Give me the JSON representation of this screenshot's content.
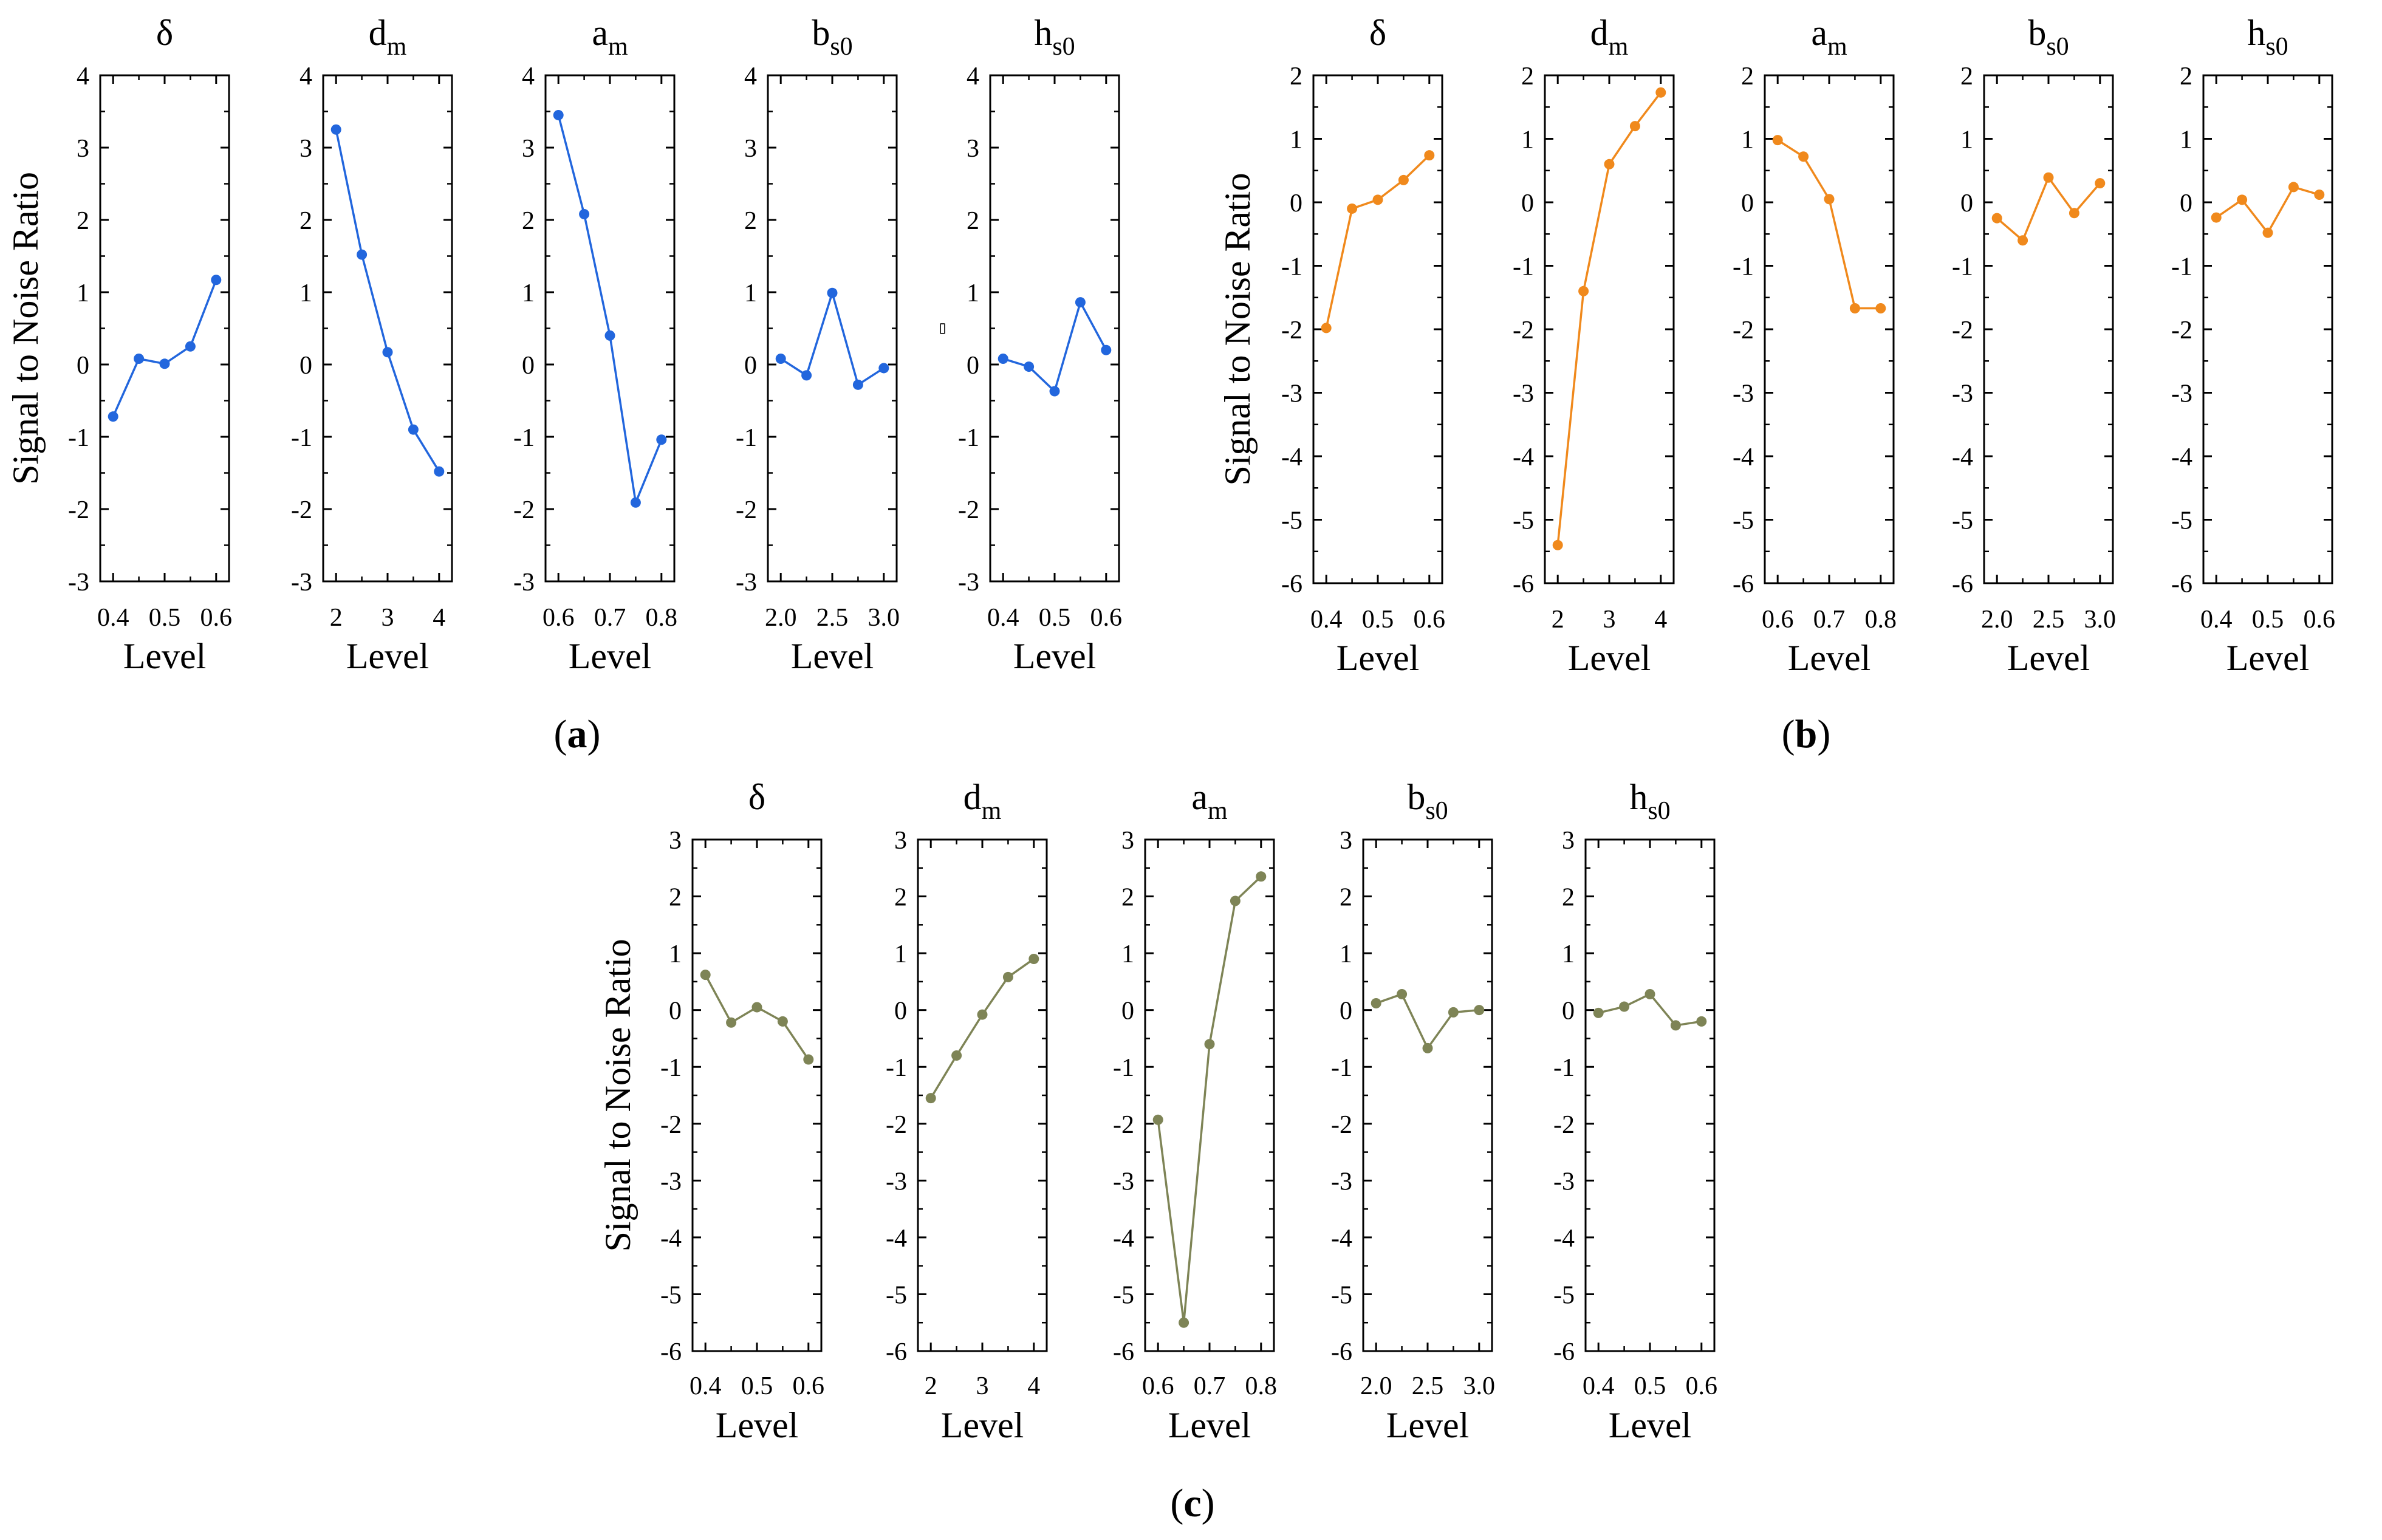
{
  "figure": {
    "y_axis_label": "Signal to Noise Ratio",
    "x_axis_label": "Level"
  },
  "chart_data": [
    {
      "id": "a",
      "label": "(a)",
      "type": "line",
      "color": "#2266dd",
      "ylabel": "Signal to Noise Ratio",
      "ylim": [
        -3,
        4
      ],
      "yticks": [
        -3,
        -2,
        -1,
        0,
        1,
        2,
        3,
        4
      ],
      "panels": [
        {
          "title": "δ",
          "sub": "",
          "xlabel": "Level",
          "xlim": [
            0.375,
            0.625
          ],
          "xticks": [
            0.4,
            0.5,
            0.6
          ],
          "xtick_labels": [
            "0.4",
            "0.5",
            "0.6"
          ],
          "x": [
            0.4,
            0.45,
            0.5,
            0.55,
            0.6
          ],
          "y": [
            -0.72,
            0.08,
            0.01,
            0.25,
            1.17
          ]
        },
        {
          "title": "d",
          "sub": "m",
          "xlabel": "Level",
          "xlim": [
            1.75,
            4.25
          ],
          "xticks": [
            2,
            3,
            4
          ],
          "xtick_labels": [
            "2",
            "3",
            "4"
          ],
          "x": [
            2.0,
            2.5,
            3.0,
            3.5,
            4.0
          ],
          "y": [
            3.25,
            1.52,
            0.17,
            -0.9,
            -1.48
          ]
        },
        {
          "title": "a",
          "sub": "m",
          "xlabel": "Level",
          "xlim": [
            0.575,
            0.825
          ],
          "xticks": [
            0.6,
            0.7,
            0.8
          ],
          "xtick_labels": [
            "0.6",
            "0.7",
            "0.8"
          ],
          "x": [
            0.6,
            0.65,
            0.7,
            0.75,
            0.8
          ],
          "y": [
            3.45,
            2.08,
            0.4,
            -1.91,
            -1.04
          ]
        },
        {
          "title": "b",
          "sub": "s0",
          "xlabel": "Level",
          "xlim": [
            1.875,
            3.125
          ],
          "xticks": [
            2.0,
            2.5,
            3.0
          ],
          "xtick_labels": [
            "2.0",
            "2.5",
            "3.0"
          ],
          "x": [
            2.0,
            2.25,
            2.5,
            2.75,
            3.0
          ],
          "y": [
            0.08,
            -0.15,
            0.99,
            -0.28,
            -0.05
          ]
        },
        {
          "title": "h",
          "sub": "s0",
          "xlabel": "Level",
          "xlim": [
            0.375,
            0.625
          ],
          "xticks": [
            0.4,
            0.5,
            0.6
          ],
          "xtick_labels": [
            "0.4",
            "0.5",
            "0.6"
          ],
          "x": [
            0.4,
            0.45,
            0.5,
            0.55,
            0.6
          ],
          "y": [
            0.08,
            -0.03,
            -0.37,
            0.86,
            0.2
          ]
        }
      ]
    },
    {
      "id": "b",
      "label": "(b)",
      "type": "line",
      "color": "#f0891c",
      "ylabel": "Signal to Noise Ratio",
      "ylim": [
        -6,
        2
      ],
      "yticks": [
        -6,
        -5,
        -4,
        -3,
        -2,
        -1,
        0,
        1,
        2
      ],
      "panels": [
        {
          "title": "δ",
          "sub": "",
          "xlabel": "Level",
          "xlim": [
            0.375,
            0.625
          ],
          "xticks": [
            0.4,
            0.5,
            0.6
          ],
          "xtick_labels": [
            "0.4",
            "0.5",
            "0.6"
          ],
          "x": [
            0.4,
            0.45,
            0.5,
            0.55,
            0.6
          ],
          "y": [
            -1.98,
            -0.1,
            0.04,
            0.35,
            0.74
          ]
        },
        {
          "title": "d",
          "sub": "m",
          "xlabel": "Level",
          "xlim": [
            1.75,
            4.25
          ],
          "xticks": [
            2,
            3,
            4
          ],
          "xtick_labels": [
            "2",
            "3",
            "4"
          ],
          "x": [
            2.0,
            2.5,
            3.0,
            3.5,
            4.0
          ],
          "y": [
            -5.4,
            -1.4,
            0.6,
            1.2,
            1.73
          ]
        },
        {
          "title": "a",
          "sub": "m",
          "xlabel": "Level",
          "xlim": [
            0.575,
            0.825
          ],
          "xticks": [
            0.6,
            0.7,
            0.8
          ],
          "xtick_labels": [
            "0.6",
            "0.7",
            "0.8"
          ],
          "x": [
            0.6,
            0.65,
            0.7,
            0.75,
            0.8
          ],
          "y": [
            0.98,
            0.72,
            0.05,
            -1.67,
            -1.67
          ]
        },
        {
          "title": "b",
          "sub": "s0",
          "xlabel": "Level",
          "xlim": [
            1.875,
            3.125
          ],
          "xticks": [
            2.0,
            2.5,
            3.0
          ],
          "xtick_labels": [
            "2.0",
            "2.5",
            "3.0"
          ],
          "x": [
            2.0,
            2.25,
            2.5,
            2.75,
            3.0
          ],
          "y": [
            -0.25,
            -0.6,
            0.39,
            -0.17,
            0.3
          ]
        },
        {
          "title": "h",
          "sub": "s0",
          "xlabel": "Level",
          "xlim": [
            0.375,
            0.625
          ],
          "xticks": [
            0.4,
            0.5,
            0.6
          ],
          "xtick_labels": [
            "0.4",
            "0.5",
            "0.6"
          ],
          "x": [
            0.4,
            0.45,
            0.5,
            0.55,
            0.6
          ],
          "y": [
            -0.24,
            0.04,
            -0.48,
            0.24,
            0.12
          ]
        }
      ]
    },
    {
      "id": "c",
      "label": "(c)",
      "type": "line",
      "color": "#7e8456",
      "ylabel": "Signal to Noise Ratio",
      "ylim": [
        -6,
        3
      ],
      "yticks": [
        -6,
        -5,
        -4,
        -3,
        -2,
        -1,
        0,
        1,
        2,
        3
      ],
      "panels": [
        {
          "title": "δ",
          "sub": "",
          "xlabel": "Level",
          "xlim": [
            0.375,
            0.625
          ],
          "xticks": [
            0.4,
            0.5,
            0.6
          ],
          "xtick_labels": [
            "0.4",
            "0.5",
            "0.6"
          ],
          "x": [
            0.4,
            0.45,
            0.5,
            0.55,
            0.6
          ],
          "y": [
            0.62,
            -0.22,
            0.05,
            -0.2,
            -0.87
          ]
        },
        {
          "title": "d",
          "sub": "m",
          "xlabel": "Level",
          "xlim": [
            1.75,
            4.25
          ],
          "xticks": [
            2,
            3,
            4
          ],
          "xtick_labels": [
            "2",
            "3",
            "4"
          ],
          "x": [
            2.0,
            2.5,
            3.0,
            3.5,
            4.0
          ],
          "y": [
            -1.55,
            -0.8,
            -0.08,
            0.58,
            0.9
          ]
        },
        {
          "title": "a",
          "sub": "m",
          "xlabel": "Level",
          "xlim": [
            0.575,
            0.825
          ],
          "xticks": [
            0.6,
            0.7,
            0.8
          ],
          "xtick_labels": [
            "0.6",
            "0.7",
            "0.8"
          ],
          "x": [
            0.6,
            0.65,
            0.7,
            0.75,
            0.8
          ],
          "y": [
            -1.93,
            -5.5,
            -0.6,
            1.92,
            2.35
          ]
        },
        {
          "title": "b",
          "sub": "s0",
          "xlabel": "Level",
          "xlim": [
            1.875,
            3.125
          ],
          "xticks": [
            2.0,
            2.5,
            3.0
          ],
          "xtick_labels": [
            "2.0",
            "2.5",
            "3.0"
          ],
          "x": [
            2.0,
            2.25,
            2.5,
            2.75,
            3.0
          ],
          "y": [
            0.12,
            0.28,
            -0.67,
            -0.04,
            0.0
          ]
        },
        {
          "title": "h",
          "sub": "s0",
          "xlabel": "Level",
          "xlim": [
            0.375,
            0.625
          ],
          "xticks": [
            0.4,
            0.5,
            0.6
          ],
          "xtick_labels": [
            "0.4",
            "0.5",
            "0.6"
          ],
          "x": [
            0.4,
            0.45,
            0.5,
            0.55,
            0.6
          ],
          "y": [
            -0.05,
            0.06,
            0.28,
            -0.27,
            -0.2
          ]
        }
      ]
    }
  ]
}
